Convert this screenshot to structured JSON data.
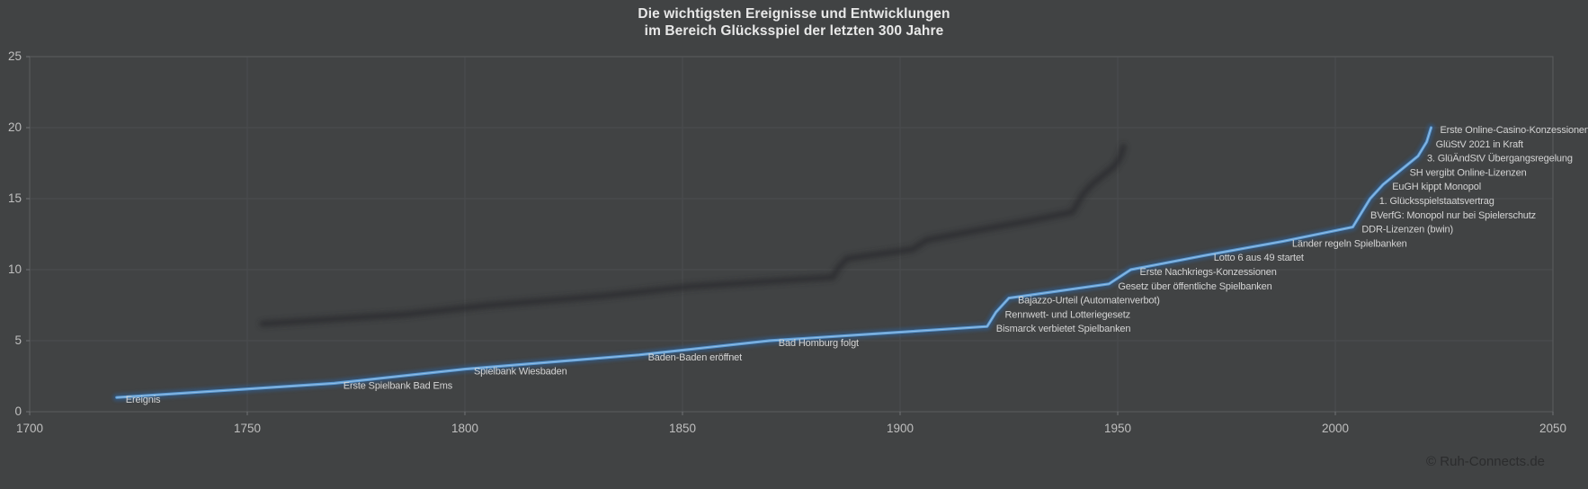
{
  "header": {
    "title_line1": "Die wichtigsten Ereignisse und Entwicklungen",
    "title_line2": "im Bereich Glücksspiel der letzten 300 Jahre"
  },
  "footer": {
    "watermark": "© Ruh-Connects.de"
  },
  "colors": {
    "background": "#414344",
    "grid": "#4b4d4f",
    "plot_border": "#5a5c5e",
    "axis_tick": "#707274",
    "tick_label": "#bfbfbf",
    "data_label": "#d4d4d4",
    "line_main": "#5b9bd5",
    "line_glow": "#2f6098",
    "line_core": "#9cc3e5",
    "line_shadow": "#26282a",
    "title": "#e8e8e8",
    "watermark": "#2b2c2d"
  },
  "chart_data": {
    "type": "line",
    "title": "Die wichtigsten Ereignisse und Entwicklungen im Bereich Glücksspiel der letzten 300 Jahre",
    "xlabel": "",
    "ylabel": "",
    "grid": true,
    "legend": false,
    "x_axis": {
      "min": 1700,
      "max": 2050,
      "ticks": [
        1700,
        1750,
        1800,
        1850,
        1900,
        1950,
        2000,
        2050
      ]
    },
    "y_axis": {
      "min": 0,
      "max": 25,
      "ticks": [
        0,
        5,
        10,
        15,
        20,
        25
      ]
    },
    "series": [
      {
        "name": "Ereignis",
        "points": [
          {
            "x": 1720,
            "y": 1,
            "label": "Ereignis"
          },
          {
            "x": 1770,
            "y": 2,
            "label": "Erste Spielbank Bad Ems"
          },
          {
            "x": 1800,
            "y": 3,
            "label": "Spielbank Wiesbaden"
          },
          {
            "x": 1840,
            "y": 4,
            "label": "Baden-Baden eröffnet"
          },
          {
            "x": 1870,
            "y": 5,
            "label": "Bad Homburg folgt"
          },
          {
            "x": 1920,
            "y": 6,
            "label": "Bismarck verbietet Spielbanken"
          },
          {
            "x": 1922,
            "y": 7,
            "label": "Rennwett- und Lotteriegesetz"
          },
          {
            "x": 1925,
            "y": 8,
            "label": "Bajazzo-Urteil (Automatenverbot)"
          },
          {
            "x": 1948,
            "y": 9,
            "label": "Gesetz über öffentliche Spielbanken"
          },
          {
            "x": 1953,
            "y": 10,
            "label": "Erste Nachkriegs-Konzessionen"
          },
          {
            "x": 1970,
            "y": 11,
            "label": "Lotto 6 aus 49 startet"
          },
          {
            "x": 1988,
            "y": 12,
            "label": "Länder regeln Spielbanken"
          },
          {
            "x": 2004,
            "y": 13,
            "label": "DDR-Lizenzen (bwin)"
          },
          {
            "x": 2006,
            "y": 14,
            "label": "BVerfG: Monopol nur bei Spielerschutz"
          },
          {
            "x": 2008,
            "y": 15,
            "label": "1. Glücksspielstaatsvertrag"
          },
          {
            "x": 2011,
            "y": 16,
            "label": "EuGH kippt Monopol"
          },
          {
            "x": 2015,
            "y": 17,
            "label": "SH vergibt Online-Lizenzen"
          },
          {
            "x": 2019,
            "y": 18,
            "label": "3. GlüÄndStV Übergangsregelung"
          },
          {
            "x": 2021,
            "y": 19,
            "label": "GlüStV 2021 in Kraft"
          },
          {
            "x": 2022,
            "y": 20,
            "label": "Erste Online-Casino-Konzessionen"
          }
        ]
      }
    ]
  }
}
